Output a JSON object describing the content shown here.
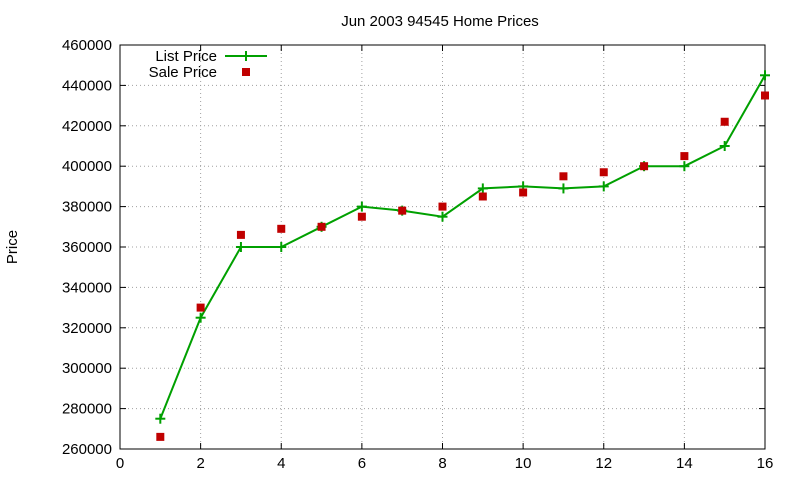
{
  "chart_data": {
    "type": "line",
    "title": "Jun 2003 94545 Home Prices",
    "xlabel": "",
    "ylabel": "Price",
    "xlim": [
      0,
      16
    ],
    "ylim": [
      260000,
      460000
    ],
    "xticks": [
      "0",
      "2",
      "4",
      "6",
      "8",
      "10",
      "12",
      "14",
      "16"
    ],
    "yticks": [
      "260000",
      "280000",
      "300000",
      "320000",
      "340000",
      "360000",
      "380000",
      "400000",
      "420000",
      "440000",
      "460000"
    ],
    "grid": true,
    "legend_position": "top-left",
    "series": [
      {
        "name": "List Price",
        "style": "line-with-plus-markers",
        "color": "#00a000",
        "x": [
          1,
          2,
          3,
          4,
          5,
          6,
          7,
          8,
          9,
          10,
          11,
          12,
          13,
          14,
          15,
          16
        ],
        "y": [
          275000,
          325000,
          360000,
          360000,
          370000,
          380000,
          378000,
          375000,
          389000,
          390000,
          389000,
          390000,
          400000,
          400000,
          410000,
          445000
        ]
      },
      {
        "name": "Sale Price",
        "style": "square-markers",
        "color": "#c00000",
        "x": [
          1,
          2,
          3,
          4,
          5,
          6,
          7,
          8,
          9,
          10,
          11,
          12,
          13,
          14,
          15,
          16
        ],
        "y": [
          266000,
          330000,
          366000,
          369000,
          370000,
          375000,
          378000,
          380000,
          385000,
          387000,
          395000,
          397000,
          400000,
          405000,
          422000,
          435000
        ]
      }
    ]
  }
}
